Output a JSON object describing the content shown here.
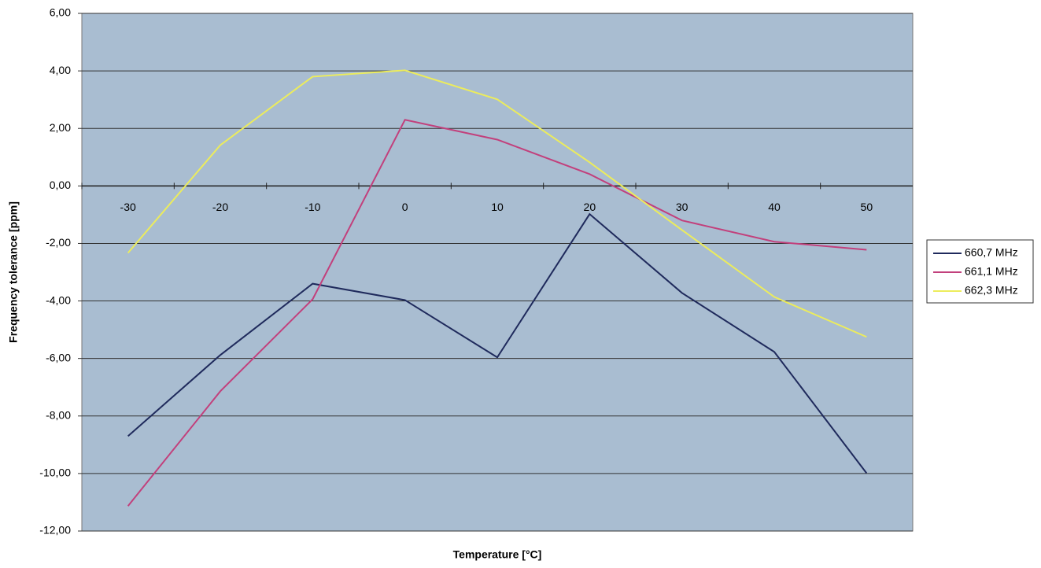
{
  "chart_data": {
    "type": "line",
    "xlabel": "Temperature [°C]",
    "ylabel": "Frequency tolerance [ppm]",
    "categories": [
      "-30",
      "-20",
      "-10",
      "0",
      "10",
      "20",
      "30",
      "40",
      "50"
    ],
    "series": [
      {
        "name": "660,7 MHz",
        "color": "#1f2a5c",
        "values": [
          -8.7,
          -5.88,
          -3.4,
          -3.97,
          -5.96,
          -0.98,
          -3.72,
          -5.77,
          -9.99
        ]
      },
      {
        "name": "661,1 MHz",
        "color": "#c2407c",
        "values": [
          -11.13,
          -7.14,
          -3.94,
          2.3,
          1.61,
          0.41,
          -1.2,
          -1.94,
          -2.22
        ]
      },
      {
        "name": "662,3 MHz",
        "color": "#ecec5c",
        "values": [
          -2.33,
          1.42,
          3.8,
          4.02,
          3.01,
          0.82,
          -1.53,
          -3.86,
          -5.25
        ]
      }
    ],
    "ylim": [
      -12,
      6
    ],
    "yticks": [
      {
        "value": -12,
        "label": "-12,00"
      },
      {
        "value": -10,
        "label": "-10,00"
      },
      {
        "value": -8,
        "label": "-8,00"
      },
      {
        "value": -6,
        "label": "-6,00"
      },
      {
        "value": -4,
        "label": "-4,00"
      },
      {
        "value": -2,
        "label": "-2,00"
      },
      {
        "value": 0,
        "label": "0,00"
      },
      {
        "value": 2,
        "label": "2,00"
      },
      {
        "value": 4,
        "label": "4,00"
      },
      {
        "value": 6,
        "label": "6,00"
      }
    ],
    "grid": true,
    "legend": "right"
  }
}
